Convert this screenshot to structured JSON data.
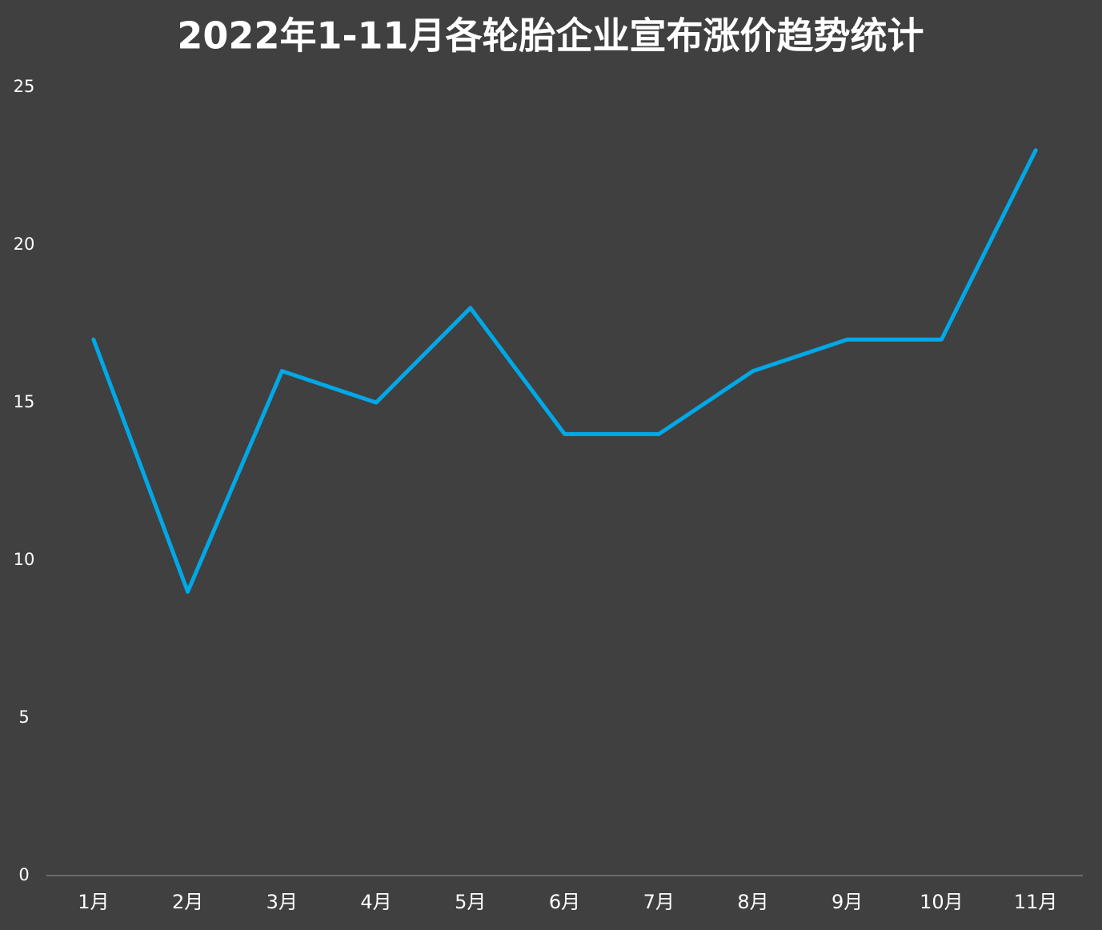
{
  "chart_data": {
    "type": "line",
    "title": "2022年1-11月各轮胎企业宣布涨价趋势统计",
    "categories": [
      "1月",
      "2月",
      "3月",
      "4月",
      "5月",
      "6月",
      "7月",
      "8月",
      "9月",
      "10月",
      "11月"
    ],
    "values": [
      17,
      9,
      16,
      15,
      18,
      14,
      14,
      16,
      17,
      17,
      23
    ],
    "color": "#00a8e8",
    "ylim": [
      0,
      25
    ],
    "yticks": [
      0,
      5,
      10,
      15,
      20,
      25
    ],
    "grid": false
  }
}
